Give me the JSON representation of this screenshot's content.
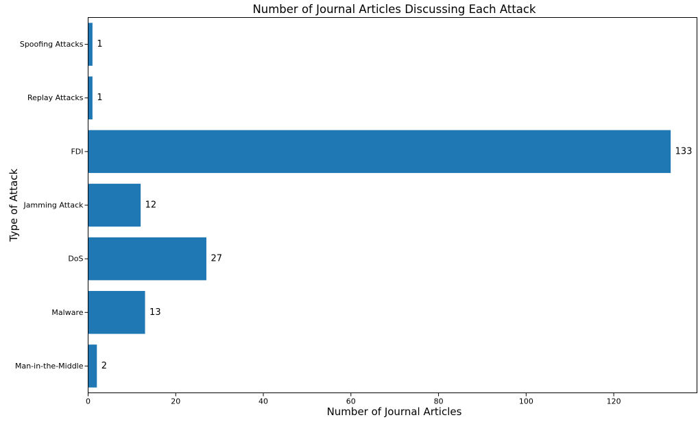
{
  "chart_data": {
    "type": "bar",
    "orientation": "horizontal",
    "title": "Number of Journal Articles Discussing Each Attack",
    "xlabel": "Number of Journal Articles",
    "ylabel": "Type of Attack",
    "categories": [
      "Man-in-the-Middle",
      "Malware",
      "DoS",
      "Jamming Attack",
      "FDI",
      "Replay Attacks",
      "Spoofing Attacks"
    ],
    "values": [
      2,
      13,
      27,
      12,
      133,
      1,
      1
    ],
    "value_labels": [
      "2",
      "13",
      "27",
      "12",
      "133",
      "1",
      "1"
    ],
    "xlim": [
      0,
      139
    ],
    "xticks": [
      0,
      20,
      40,
      60,
      80,
      100,
      120
    ],
    "xtick_labels": [
      "0",
      "20",
      "40",
      "60",
      "80",
      "100",
      "120"
    ],
    "bar_color": "#1f77b4",
    "grid": false,
    "legend": "none"
  }
}
